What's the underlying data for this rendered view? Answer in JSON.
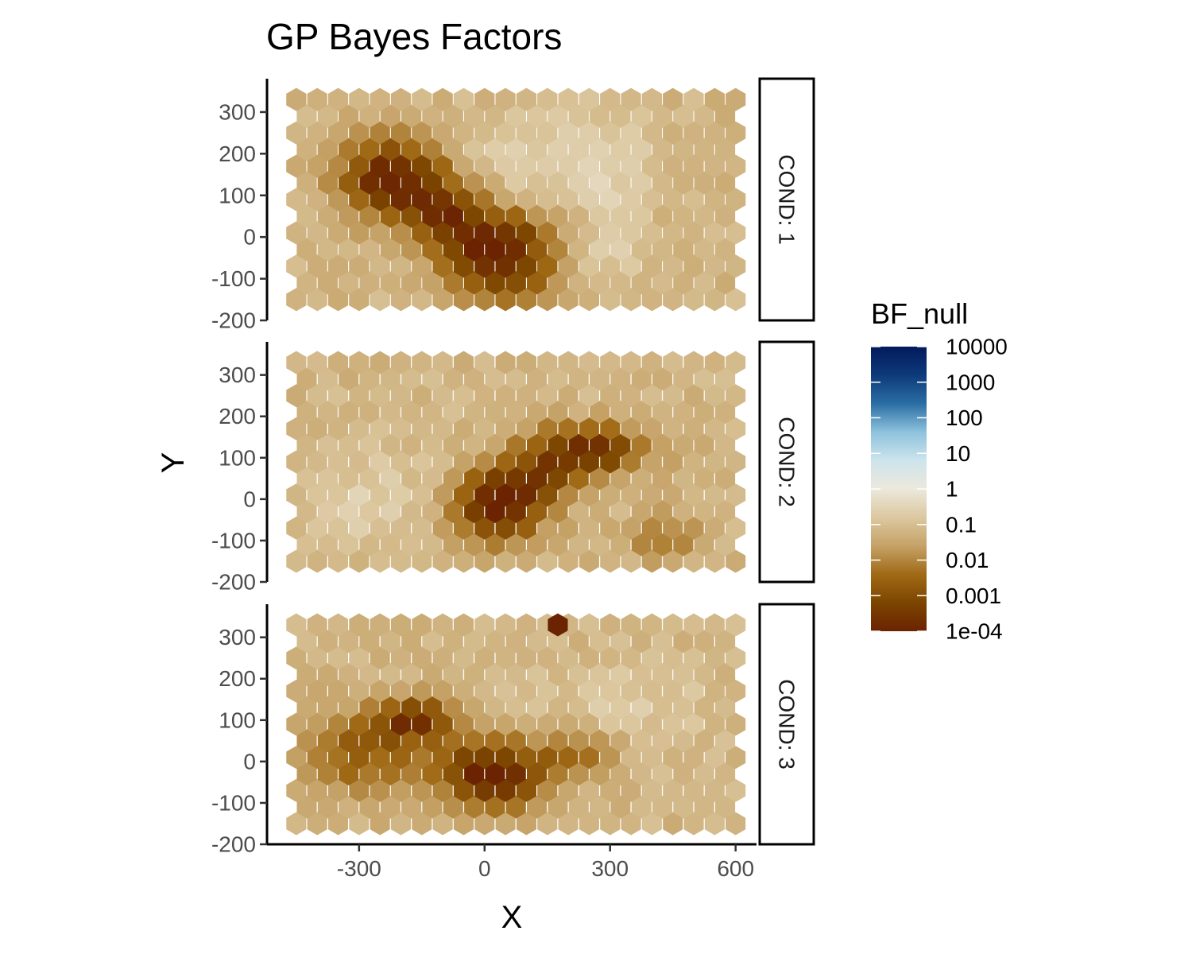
{
  "chart_data": {
    "type": "heatmap",
    "geom": "hexbin",
    "title": "GP Bayes Factors",
    "xlabel": "X",
    "ylabel": "Y",
    "xlim": [
      -520,
      650
    ],
    "ylim": [
      -200,
      380
    ],
    "x_ticks": [
      -300,
      0,
      300,
      600
    ],
    "x_tick_labels": [
      "-300",
      "0",
      "300",
      "600"
    ],
    "y_ticks": [
      -200,
      -100,
      0,
      100,
      200,
      300
    ],
    "y_tick_labels": [
      "-200",
      "-100",
      "0",
      "100",
      "200",
      "300"
    ],
    "hex_grid": {
      "x_min": -450,
      "x_max": 600,
      "x_step": 50,
      "y_min": -150,
      "y_max": 330,
      "y_step": 40
    },
    "background_log10_bf": -1.2,
    "panels": [
      {
        "strip": "COND: 1",
        "blobs": [
          {
            "x": -220,
            "y": 140,
            "sx": 90,
            "sy": 65,
            "depth": 2.9
          },
          {
            "x": 20,
            "y": -20,
            "sx": 95,
            "sy": 55,
            "depth": 2.9
          },
          {
            "x": -90,
            "y": 60,
            "sx": 60,
            "sy": 50,
            "depth": 1.6
          },
          {
            "x": 60,
            "y": -110,
            "sx": 90,
            "sy": 40,
            "depth": 1.3
          },
          {
            "x": 150,
            "y": 200,
            "sx": 140,
            "sy": 70,
            "depth": -0.6
          },
          {
            "x": 300,
            "y": 50,
            "sx": 60,
            "sy": 160,
            "depth": -0.5
          }
        ],
        "points": []
      },
      {
        "strip": "COND: 2",
        "blobs": [
          {
            "x": 30,
            "y": -20,
            "sx": 80,
            "sy": 55,
            "depth": 2.9
          },
          {
            "x": 240,
            "y": 120,
            "sx": 100,
            "sy": 40,
            "depth": 2.6
          },
          {
            "x": 130,
            "y": 50,
            "sx": 80,
            "sy": 35,
            "depth": 1.5
          },
          {
            "x": 430,
            "y": -90,
            "sx": 60,
            "sy": 40,
            "depth": 1.0
          },
          {
            "x": -280,
            "y": 0,
            "sx": 120,
            "sy": 90,
            "depth": -0.5
          }
        ],
        "points": []
      },
      {
        "strip": "COND: 3",
        "blobs": [
          {
            "x": 20,
            "y": -30,
            "sx": 90,
            "sy": 55,
            "depth": 2.9
          },
          {
            "x": -160,
            "y": 100,
            "sx": 70,
            "sy": 35,
            "depth": 2.3
          },
          {
            "x": -300,
            "y": 20,
            "sx": 110,
            "sy": 70,
            "depth": 1.4
          },
          {
            "x": 230,
            "y": 20,
            "sx": 70,
            "sy": 40,
            "depth": 1.2
          },
          {
            "x": 350,
            "y": 130,
            "sx": 150,
            "sy": 90,
            "depth": -0.4
          }
        ],
        "points": [
          {
            "x": 175,
            "y": 330,
            "log10_bf": -4
          }
        ]
      }
    ],
    "legend": {
      "title": "BF_null",
      "position": "right",
      "scale": "log10",
      "breaks": [
        10000,
        1000,
        100,
        10,
        1,
        0.1,
        0.01,
        0.001,
        0.0001
      ],
      "labels": [
        "10000",
        "1000",
        "100",
        "10",
        "1",
        "0.1",
        "0.01",
        "0.001",
        "1e-04"
      ],
      "colors_low_to_high": [
        "#6b2302",
        "#7c4500",
        "#a06a16",
        "#c5a267",
        "#dcc8a0",
        "#ece8dc",
        "#cde4ec",
        "#8ec2dd",
        "#2a6ea4",
        "#0d3a7a",
        "#031a5c"
      ]
    }
  }
}
